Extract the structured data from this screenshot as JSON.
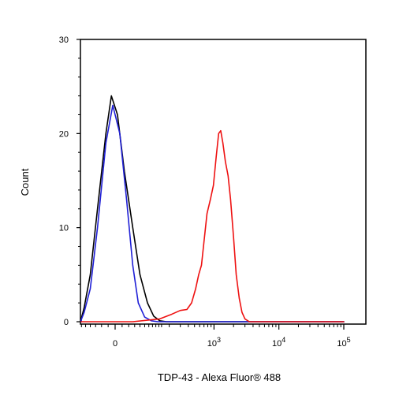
{
  "chart_data": {
    "type": "line",
    "title": "",
    "xlabel": "TDP-43 - Alexa Fluor® 488",
    "ylabel": "Count",
    "x_scale": "biexponential",
    "ylim": [
      0,
      30
    ],
    "y_ticks": [
      {
        "value": 0,
        "label": "0"
      },
      {
        "value": 10,
        "label": "10"
      },
      {
        "value": 20,
        "label": "20"
      },
      {
        "value": 30,
        "label": "30"
      }
    ],
    "x_ticks": [
      {
        "value": 0,
        "base": "0",
        "exp": ""
      },
      {
        "value": 1000,
        "base": "10",
        "exp": "3"
      },
      {
        "value": 10000,
        "base": "10",
        "exp": "4"
      },
      {
        "value": 100000,
        "base": "10",
        "exp": "5"
      }
    ],
    "grid": false,
    "legend": "none",
    "series": [
      {
        "color": "#000000",
        "points": [
          [
            -150,
            0
          ],
          [
            -110,
            0.3
          ],
          [
            -80,
            1.5
          ],
          [
            -60,
            5
          ],
          [
            -40,
            12
          ],
          [
            -20,
            20
          ],
          [
            -8,
            24
          ],
          [
            5,
            22
          ],
          [
            20,
            16
          ],
          [
            40,
            10
          ],
          [
            60,
            5
          ],
          [
            85,
            2
          ],
          [
            110,
            0.6
          ],
          [
            140,
            0.1
          ],
          [
            180,
            0
          ],
          [
            300,
            0
          ],
          [
            1000,
            0
          ],
          [
            100000,
            0
          ]
        ]
      },
      {
        "color": "#1f1fd6",
        "points": [
          [
            -150,
            0
          ],
          [
            -110,
            0.2
          ],
          [
            -80,
            1
          ],
          [
            -60,
            3.5
          ],
          [
            -40,
            10
          ],
          [
            -20,
            19
          ],
          [
            -5,
            23
          ],
          [
            10,
            20
          ],
          [
            25,
            13
          ],
          [
            40,
            6
          ],
          [
            55,
            2
          ],
          [
            75,
            0.5
          ],
          [
            100,
            0.1
          ],
          [
            130,
            0
          ],
          [
            300,
            0
          ],
          [
            100000,
            0
          ]
        ]
      },
      {
        "color": "#ee1111",
        "points": [
          [
            -150,
            0
          ],
          [
            40,
            0
          ],
          [
            140,
            0.3
          ],
          [
            220,
            0.8
          ],
          [
            300,
            1.2
          ],
          [
            380,
            1.3
          ],
          [
            450,
            2
          ],
          [
            520,
            3.5
          ],
          [
            580,
            5
          ],
          [
            640,
            6
          ],
          [
            700,
            8.5
          ],
          [
            780,
            11.5
          ],
          [
            880,
            13
          ],
          [
            980,
            14.5
          ],
          [
            1080,
            17.5
          ],
          [
            1180,
            20
          ],
          [
            1270,
            20.3
          ],
          [
            1370,
            19
          ],
          [
            1500,
            17
          ],
          [
            1650,
            15.5
          ],
          [
            1800,
            13
          ],
          [
            2000,
            9
          ],
          [
            2200,
            5
          ],
          [
            2450,
            2.5
          ],
          [
            2700,
            1
          ],
          [
            3000,
            0.3
          ],
          [
            3500,
            0
          ],
          [
            100000,
            0
          ]
        ]
      }
    ]
  }
}
